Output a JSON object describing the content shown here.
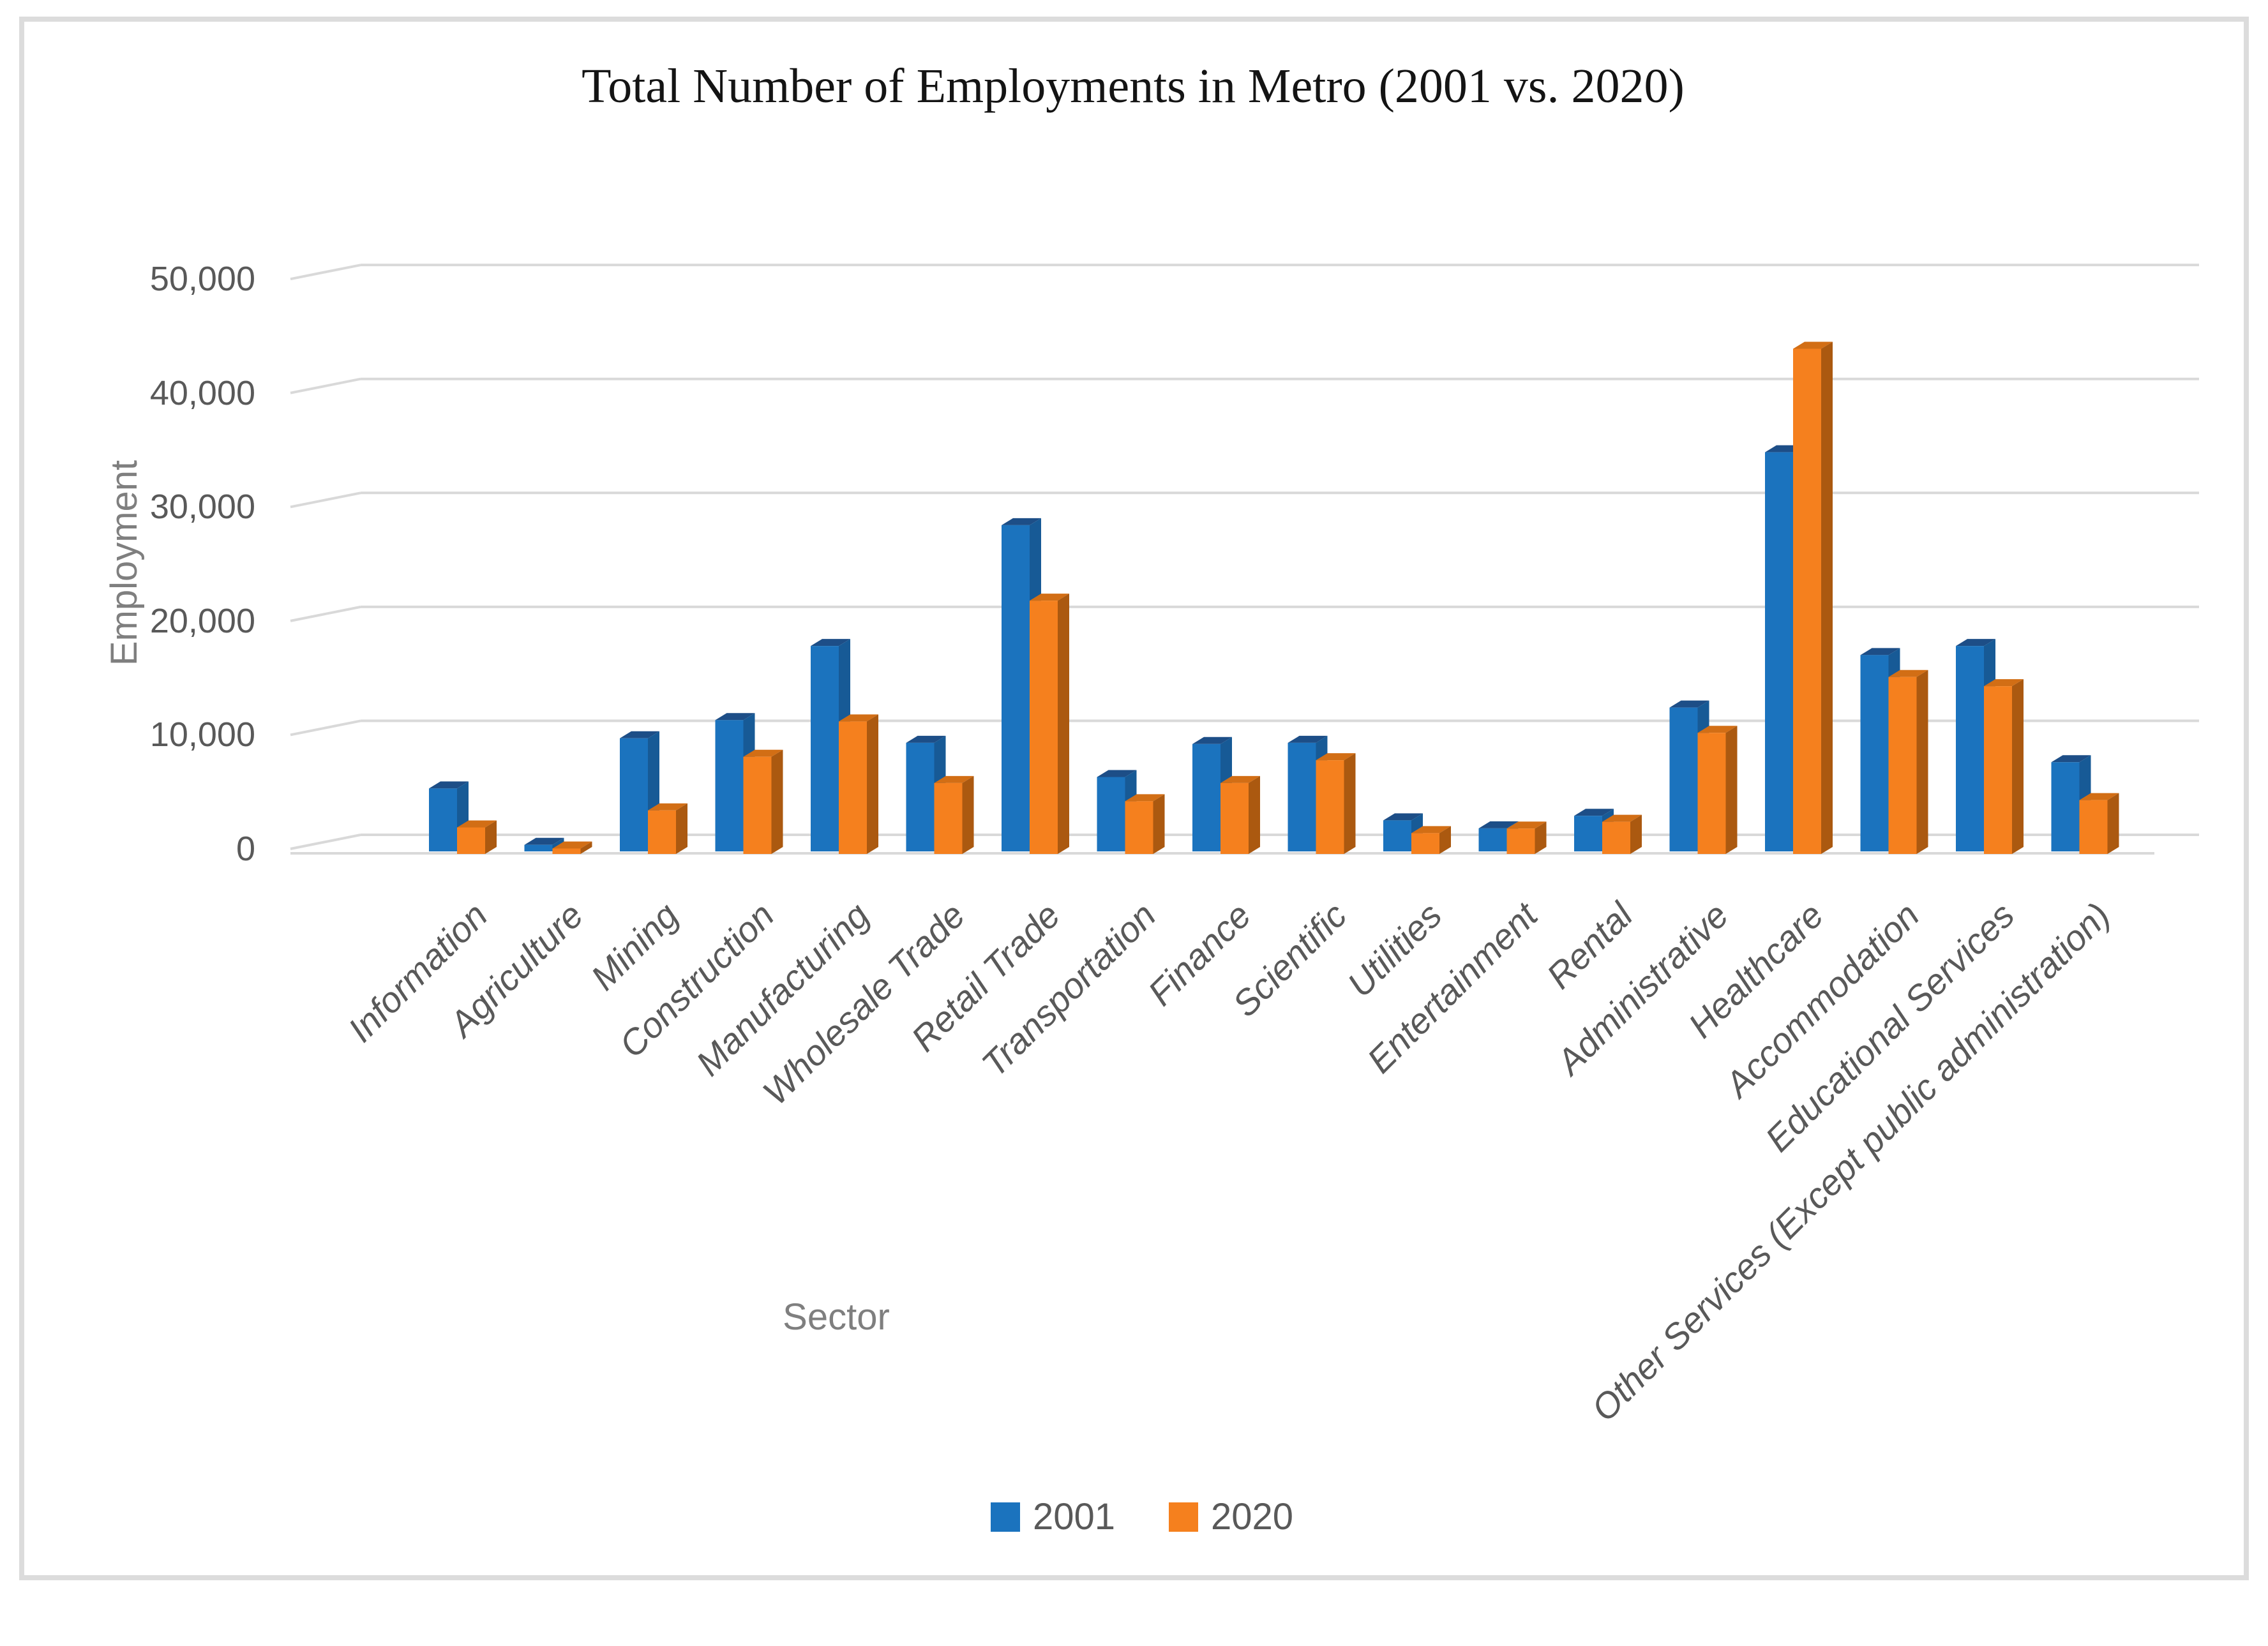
{
  "title": "Total Number of Employments in Metro (2001 vs. 2020)",
  "y_axis": {
    "label": "Employment",
    "ticks": [
      {
        "label": "0",
        "value": 0
      },
      {
        "label": "10,000",
        "value": 10000
      },
      {
        "label": "20,000",
        "value": 20000
      },
      {
        "label": "30,000",
        "value": 30000
      },
      {
        "label": "40,000",
        "value": 40000
      },
      {
        "label": "50,000",
        "value": 50000
      }
    ]
  },
  "x_axis": {
    "label": "Sector"
  },
  "legend": [
    {
      "label": "2001",
      "color": "#1b73be"
    },
    {
      "label": "2020",
      "color": "#f5801e"
    }
  ],
  "colors": {
    "gridline": "#d9d9d9",
    "axis_text": "#595959",
    "axis_title_text": "#7f7f7f",
    "frame_border": "#dcdcdc"
  },
  "chart_data": {
    "type": "bar",
    "title": "Total Number of Employments in Metro (2001 vs. 2020)",
    "xlabel": "Sector",
    "ylabel": "Employment",
    "ylim": [
      0,
      50000
    ],
    "grid": true,
    "legend_position": "bottom",
    "style": "3d-clustered-column",
    "categories": [
      "Information",
      "Agriculture",
      "Mining",
      "Construction",
      "Manufacturing",
      "Wholesale Trade",
      "Retail Trade",
      "Transportation",
      "Finance",
      "Scientific",
      "Utilities",
      "Entertainment",
      "Rental",
      "Administrative",
      "Healthcare",
      "Accommodation",
      "Educational Services",
      "Other Services (Except public administration)"
    ],
    "series": [
      {
        "name": "2001",
        "color": "#1b73be",
        "color_top": "#1d4e87",
        "color_side": "#175a96",
        "values": [
          5300,
          350,
          9700,
          11300,
          17800,
          9300,
          28400,
          6300,
          9200,
          9300,
          2500,
          1800,
          2900,
          12400,
          34800,
          17000,
          17800,
          7600
        ]
      },
      {
        "name": "2020",
        "color": "#f5801e",
        "color_top": "#d26e15",
        "color_side": "#ab5910",
        "values": [
          2100,
          250,
          3600,
          8300,
          11400,
          6000,
          22000,
          4400,
          6000,
          8000,
          1600,
          2000,
          2600,
          10400,
          44100,
          15300,
          14500,
          4500
        ]
      }
    ]
  }
}
